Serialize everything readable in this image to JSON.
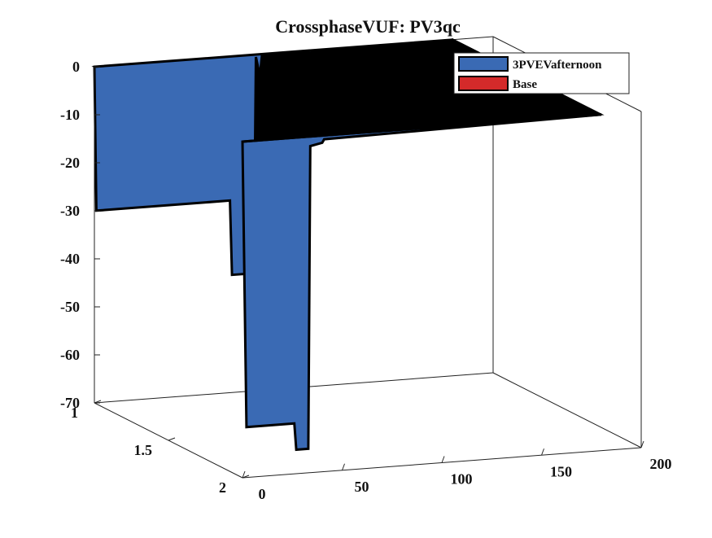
{
  "chart_data": {
    "type": "area",
    "title": "CrossphaseVUF: PV3qc",
    "xlabel": "",
    "ylabel": "",
    "zlabel": "",
    "xlim": [
      0,
      200
    ],
    "ylim": [
      1,
      2
    ],
    "zlim": [
      -70,
      0
    ],
    "x_ticks": [
      "0",
      "50",
      "100",
      "150",
      "200"
    ],
    "y_ticks": [
      "1",
      "1.5",
      "2"
    ],
    "z_ticks": [
      "0",
      "-10",
      "-20",
      "-30",
      "-40",
      "-50",
      "-60",
      "-70"
    ],
    "legend": {
      "location": "top-right",
      "entries": [
        {
          "label": "3PVEVafternoon",
          "color": "#3a6ab4"
        },
        {
          "label": "Base",
          "color": "#d42a2a"
        }
      ]
    },
    "series": [
      {
        "name": "3PVEVafternoon",
        "color": "#3a6ab4",
        "y": 2,
        "x": [
          0,
          2,
          26,
          27,
          33,
          34,
          40,
          41,
          180
        ],
        "values": [
          0,
          -59.5,
          -59.5,
          -65,
          -65,
          -2,
          -1.5,
          -0.8,
          0
        ]
      },
      {
        "name": "Base",
        "color": "#d42a2a",
        "y": 1,
        "x": [
          0,
          1,
          68,
          69,
          80,
          81,
          83,
          84,
          180
        ],
        "values": [
          0,
          -30,
          -30,
          -45.5,
          -45.5,
          -0.5,
          -4.5,
          -0.5,
          0
        ]
      }
    ],
    "grid": false,
    "colors": {
      "surface_top": "#000000",
      "fill": "#3a6ab4",
      "edge": "#000000"
    }
  }
}
